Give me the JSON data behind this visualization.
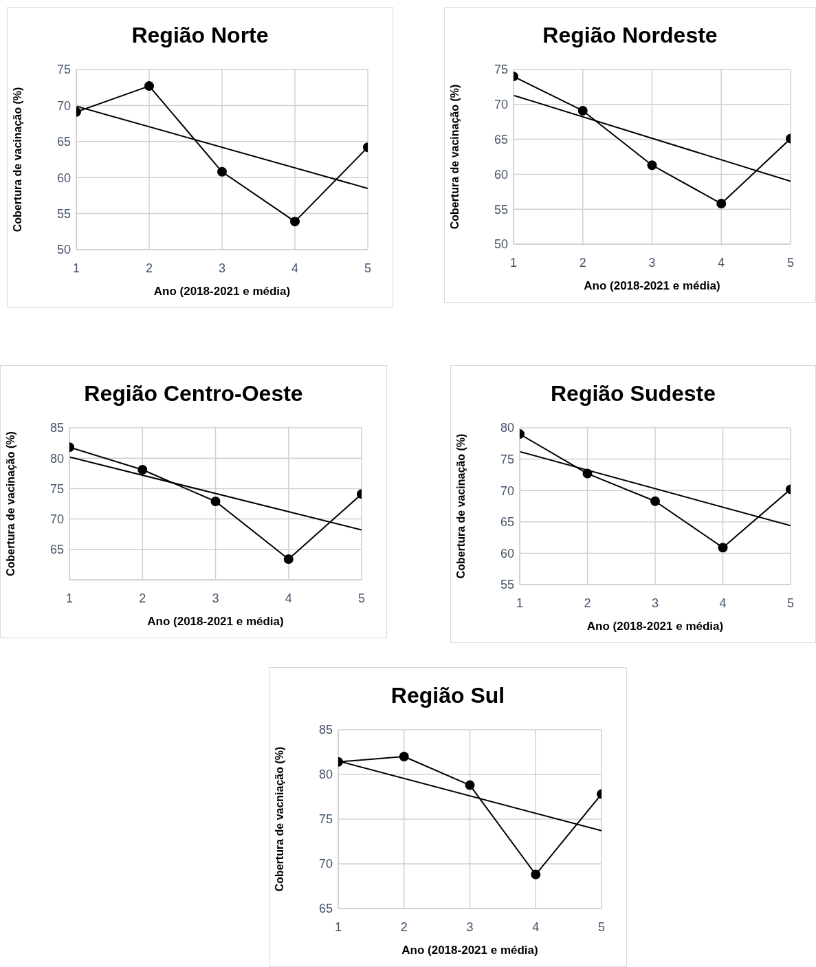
{
  "chart_data": [
    {
      "type": "line",
      "title": "Região Norte",
      "xlabel": "Ano (2018-2021 e média)",
      "ylabel": "Cobertura de vacinação (%)",
      "xlim": [
        1,
        5
      ],
      "xticks": [
        1,
        2,
        3,
        4,
        5
      ],
      "ylim": [
        50,
        75
      ],
      "yticks": [
        50,
        55,
        60,
        65,
        70,
        75
      ],
      "grid": true,
      "series": [
        {
          "color": "#000000",
          "marker": "circle",
          "x": [
            1,
            2,
            3,
            4,
            5
          ],
          "values": [
            69.1,
            72.7,
            60.8,
            53.9,
            64.2
          ]
        },
        {
          "type": "line",
          "color": "#000000",
          "marker": "none",
          "x": [
            1,
            5
          ],
          "values": [
            69.9,
            58.5
          ]
        }
      ]
    },
    {
      "type": "line",
      "title": "Região Nordeste",
      "xlabel": "Ano (2018-2021 e média)",
      "ylabel": "Cobertura de vacinação (%)",
      "xlim": [
        1,
        5
      ],
      "xticks": [
        1,
        2,
        3,
        4,
        5
      ],
      "ylim": [
        50,
        75
      ],
      "yticks": [
        50,
        55,
        60,
        65,
        70,
        75
      ],
      "grid": true,
      "series": [
        {
          "color": "#000000",
          "marker": "circle",
          "x": [
            1,
            2,
            3,
            4,
            5
          ],
          "values": [
            74.0,
            69.1,
            61.3,
            55.8,
            65.1
          ]
        },
        {
          "type": "line",
          "color": "#000000",
          "marker": "none",
          "x": [
            1,
            5
          ],
          "values": [
            71.3,
            59.0
          ]
        }
      ]
    },
    {
      "type": "line",
      "title": "Região Centro-Oeste",
      "xlabel": "Ano (2018-2021 e média)",
      "ylabel": "Cobertura de vacinação (%)",
      "xlim": [
        1,
        5
      ],
      "xticks": [
        1,
        2,
        3,
        4,
        5
      ],
      "ylim": [
        60,
        85
      ],
      "yticks": [
        {
          "value": 60,
          "label": null
        },
        65,
        70,
        75,
        80,
        85
      ],
      "grid": true,
      "series": [
        {
          "color": "#000000",
          "marker": "circle",
          "x": [
            1,
            2,
            3,
            4,
            5
          ],
          "values": [
            81.8,
            78.1,
            72.9,
            63.4,
            74.1
          ]
        },
        {
          "type": "line",
          "color": "#000000",
          "marker": "none",
          "x": [
            1,
            5
          ],
          "values": [
            80.2,
            68.2
          ]
        }
      ]
    },
    {
      "type": "line",
      "title": "Região Sudeste",
      "xlabel": "Ano (2018-2021 e média)",
      "ylabel": "Cobertura de vacinação (%)",
      "xlim": [
        1,
        5
      ],
      "xticks": [
        1,
        2,
        3,
        4,
        5
      ],
      "ylim": [
        55,
        80
      ],
      "yticks": [
        55,
        60,
        65,
        70,
        75,
        80
      ],
      "grid": true,
      "series": [
        {
          "color": "#000000",
          "marker": "circle",
          "x": [
            1,
            2,
            3,
            4,
            5
          ],
          "values": [
            79.0,
            72.7,
            68.3,
            60.9,
            70.2
          ]
        },
        {
          "type": "line",
          "color": "#000000",
          "marker": "none",
          "x": [
            1,
            5
          ],
          "values": [
            76.2,
            64.4
          ]
        }
      ]
    },
    {
      "type": "line",
      "title": "Região Sul",
      "xlabel": "Ano (2018-2021 e média)",
      "ylabel": "Cobertura de vacniação (%)",
      "xlim": [
        1,
        5
      ],
      "xticks": [
        1,
        2,
        3,
        4,
        5
      ],
      "ylim": [
        65,
        85
      ],
      "yticks": [
        65,
        70,
        75,
        80,
        85
      ],
      "grid": true,
      "series": [
        {
          "color": "#000000",
          "marker": "circle",
          "x": [
            1,
            2,
            3,
            4,
            5
          ],
          "values": [
            81.4,
            82.0,
            78.8,
            68.8,
            77.8
          ]
        },
        {
          "type": "line",
          "color": "#000000",
          "marker": "none",
          "x": [
            1,
            5
          ],
          "values": [
            81.5,
            73.7
          ]
        }
      ]
    }
  ]
}
